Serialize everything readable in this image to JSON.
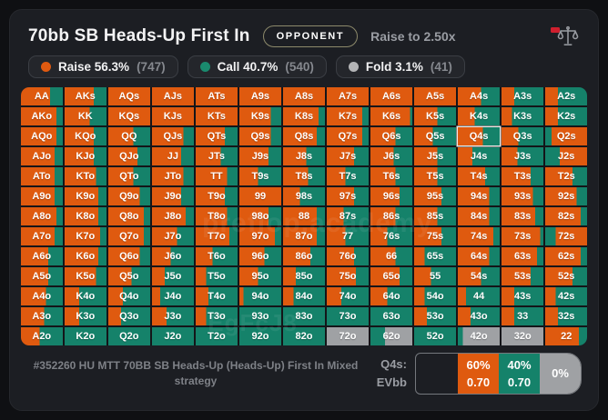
{
  "header": {
    "title": "70bb SB Heads-Up First In",
    "opponent_button": "OPPONENT",
    "raise_info": "Raise to 2.50x"
  },
  "colors": {
    "r": "#df5a0f",
    "c": "#15826a",
    "f": "#9fa1a4"
  },
  "legend": [
    {
      "action": "raise",
      "label": "Raise 56.3%",
      "count": "(747)",
      "color": "#e05a10"
    },
    {
      "action": "call",
      "label": "Call 40.7%",
      "count": "(540)",
      "color": "#1a8a6e"
    },
    {
      "action": "fold",
      "label": "Fold 3.1%",
      "count": "(41)",
      "color": "#b3b4b6"
    }
  ],
  "grid": {
    "selected": "Q4s",
    "watermark1": "preflop.academy",
    "watermark2": "EgFcJ8",
    "rows": [
      [
        "AA|r70|c30",
        "AKs|r70|c30",
        "AQs|r100",
        "AJs|r100",
        "ATs|r100",
        "A9s|r100",
        "A8s|r100",
        "A7s|r100",
        "A6s|r100",
        "A5s|r100",
        "A4s|r55|c45",
        "A3s|r30|c70",
        "A2s|r30|c70"
      ],
      [
        "AKo|r85|c15",
        "KK|r60|c40",
        "KQs|r100",
        "KJs|r100",
        "KTs|r100",
        "K9s|r75|c25",
        "K8s|r85|c15",
        "K7s|r85|c15",
        "K6s|r95|c5",
        "K5s|r55|c45",
        "K4s|r40|c60",
        "K3s|r25|c75",
        "K2s|r30|c70"
      ],
      [
        "AQo|r85|c15",
        "KQo|r70|c30",
        "QQ|r60|c40",
        "QJs|r75|c25",
        "QTs|r70|c30",
        "Q9s|r75|c25",
        "Q8s|r80|c20",
        "Q7s|r85|c15",
        "Q6s|r60|c40",
        "Q5s|r45|c55",
        "Q4s|r60|c40",
        "Q3s|r40|c60",
        "Q2s|c15|r85"
      ],
      [
        "AJo|r80|c20",
        "KJo|r70|c30",
        "QJo|r70|c30",
        "JJ|r70|c30",
        "JTs|r60|c40",
        "J9s|r70|c30",
        "J8s|r55|c45",
        "J7s|r65|c35",
        "J6s|r55|c45",
        "J5s|r55|c45",
        "J4s|r35|c65",
        "J3s|r38|c62",
        "J2s|c35|r65"
      ],
      [
        "ATo|r80|c20",
        "KTo|r75|c25",
        "QTo|r60|c40",
        "JTo|r75|c25",
        "TT|r75|c25",
        "T9s|r45|c55",
        "T8s|r60|c40",
        "T7s|r45|c55",
        "T6s|r60|c40",
        "T5s|r55|c45",
        "T4s|r65|c35",
        "T3s|r70|c30",
        "T2s|r65|c35"
      ],
      [
        "A9o|r80|c20",
        "K9o|r80|c20",
        "Q9o|r75|c25",
        "J9o|r70|c30",
        "T9o|r70|c30",
        "99|r100",
        "98s|r40|c60",
        "97s|r65|c35",
        "96s|r70|c30",
        "95s|r65|c35",
        "94s|r75|c25",
        "93s|r75|c25",
        "92s|r75|c25"
      ],
      [
        "A8o|r85|c15",
        "K8o|r80|c20",
        "Q8o|r85|c15",
        "J8o|r80|c20",
        "T8o|r75|c25",
        "98o|r70|c30",
        "88|r80|c20",
        "87s|r40|c60",
        "86s|r60|c40",
        "85s|r55|c45",
        "84s|r75|c25",
        "83s|r80|c20",
        "82s|r85|c15"
      ],
      [
        "A7o|r80|c20",
        "K7o|r85|c15",
        "Q7o|r85|c15",
        "J7o|r60|c40",
        "T7o|r80|c20",
        "97o|r85|c15",
        "87o|r80|c20",
        "77|r45|c55",
        "76s|r40|c60",
        "75s|r65|c35",
        "74s|r85|c15",
        "73s|r92|c8",
        "72s|c25|r75"
      ],
      [
        "A6o|r65|c35",
        "K6o|r80|c20",
        "Q6o|r75|c25",
        "J6o|r45|c55",
        "T6o|r40|c60",
        "96o|r60|c40",
        "86o|r65|c35",
        "76o|r65|c35",
        "66|r60|c40",
        "65s|r25|c75",
        "64s|r75|c25",
        "63s|r85|c15",
        "62s|r85|c15"
      ],
      [
        "A5o|r65|c35",
        "K5o|r75|c25",
        "Q5o|r55|c45",
        "J5o|r30|c70",
        "T5o|r25|c75",
        "95o|r45|c55",
        "85o|r30|c70",
        "75o|r70|c30",
        "65o|r70|c30",
        "55|r40|c60",
        "54s|r55|c45",
        "53s|r70|c30",
        "52s|r65|c35"
      ],
      [
        "A4o|r60|c40",
        "K4o|r35|c65",
        "Q4o|r35|c65",
        "J4o|r20|c80",
        "T4o|r30|c70",
        "94o|r10|c90",
        "84o|r25|c75",
        "74o|r35|c65",
        "64o|r40|c60",
        "54o|r25|c75",
        "44|r20|c80",
        "43s|r30|c70",
        "42s|r25|c75"
      ],
      [
        "A3o|r55|c45",
        "K3o|r35|c65",
        "Q3o|r30|c70",
        "J3o|r35|c65",
        "T3o|r25|c75",
        "93o|c100",
        "83o|c100",
        "73o|c100",
        "63o|c100",
        "53o|r30|c70",
        "43o|r30|c70",
        "33|r30|c70",
        "32s|r30|c70"
      ],
      [
        "A2o|r45|c55",
        "K2o|c100",
        "Q2o|c100",
        "J2o|c100",
        "T2o|c100",
        "92o|c100",
        "82o|c100",
        "72o|f100",
        "62o|c35|f65",
        "52o|c100",
        "42o|c12|f88",
        "32o|f100",
        "22|r80|c20"
      ]
    ]
  },
  "footer": {
    "description": "#352260 HU MTT 70BB SB Heads-Up (Heads-Up) First In Mixed strategy",
    "hand_label": "Q4s:",
    "ev_label": "EVbb",
    "detail_segments": [
      {
        "type": "spacer",
        "pct": "",
        "ev": ""
      },
      {
        "type": "r",
        "pct": "60%",
        "ev": "0.70"
      },
      {
        "type": "c",
        "pct": "40%",
        "ev": "0.70"
      },
      {
        "type": "f",
        "pct": "0%",
        "ev": ""
      }
    ]
  }
}
